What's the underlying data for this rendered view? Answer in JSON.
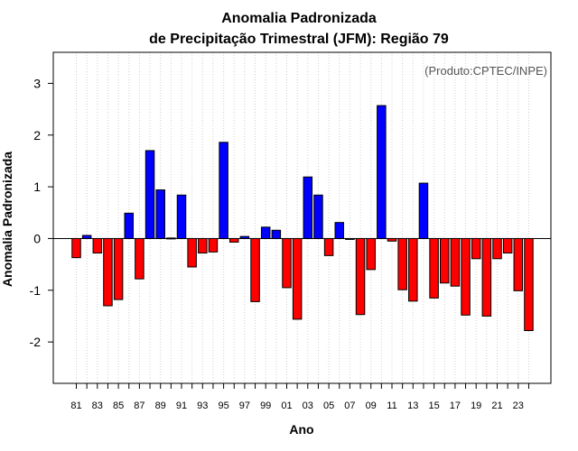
{
  "chart_data": {
    "type": "bar",
    "title": "Anomalia Padronizada",
    "subtitle": "de Precipitação Trimestral (JFM): Região 79",
    "xlabel": "Ano",
    "ylabel": "Anomalia Padronizada",
    "annotation": "(Produto:CPTEC/INPE)",
    "ylim": [
      -2.8,
      3.6
    ],
    "yticks": [
      -2,
      -1,
      0,
      1,
      2,
      3
    ],
    "xtick_labels": [
      "81",
      "83",
      "85",
      "87",
      "89",
      "91",
      "93",
      "95",
      "97",
      "99",
      "01",
      "03",
      "05",
      "07",
      "09",
      "11",
      "13",
      "15",
      "17",
      "19",
      "21",
      "23"
    ],
    "categories": [
      "1981",
      "1982",
      "1983",
      "1984",
      "1985",
      "1986",
      "1987",
      "1988",
      "1989",
      "1990",
      "1991",
      "1992",
      "1993",
      "1994",
      "1995",
      "1996",
      "1997",
      "1998",
      "1999",
      "2000",
      "2001",
      "2002",
      "2003",
      "2004",
      "2005",
      "2006",
      "2007",
      "2008",
      "2009",
      "2010",
      "2011",
      "2012",
      "2013",
      "2014",
      "2015",
      "2016",
      "2017",
      "2018",
      "2019",
      "2020",
      "2021",
      "2022",
      "2023",
      "2024"
    ],
    "values": [
      -0.37,
      0.06,
      -0.28,
      -1.3,
      -1.18,
      0.49,
      -0.78,
      1.7,
      0.94,
      0.01,
      0.84,
      -0.55,
      -0.28,
      -0.26,
      1.86,
      -0.07,
      0.04,
      -1.22,
      0.22,
      0.16,
      -0.95,
      -1.56,
      1.19,
      0.84,
      -0.33,
      0.31,
      0.0,
      -1.47,
      -0.6,
      2.57,
      -0.05,
      -0.99,
      -1.21,
      1.07,
      -1.15,
      -0.86,
      -0.92,
      -1.48,
      -0.39,
      -1.5,
      -0.39,
      -0.28,
      -1.01,
      -1.78
    ],
    "colors": {
      "positive": "#0000ff",
      "negative": "#ff0000"
    },
    "grid": "vertical dotted"
  }
}
